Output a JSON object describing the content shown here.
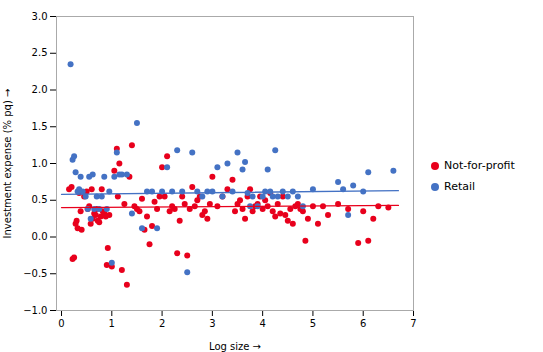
{
  "chart_data": {
    "type": "scatter",
    "xlabel": "Log size",
    "ylabel": "Investment expense (% pq)",
    "xlim": [
      -0.1,
      7.0
    ],
    "ylim": [
      -1.0,
      3.0
    ],
    "xticks": [
      0,
      1,
      2,
      3,
      4,
      5,
      6,
      7
    ],
    "yticks": [
      {
        "value": -1.0,
        "label": "−1.0"
      },
      {
        "value": -0.5,
        "label": "−0.5"
      },
      {
        "value": 0.0,
        "label": "0.0"
      },
      {
        "value": 0.5,
        "label": "0.5"
      },
      {
        "value": 1.0,
        "label": "1.0"
      },
      {
        "value": 1.5,
        "label": "1.5"
      },
      {
        "value": 2.0,
        "label": "2.0"
      },
      {
        "value": 2.5,
        "label": "2.5"
      },
      {
        "value": 3.0,
        "label": "3.0"
      }
    ],
    "grid": false,
    "legend": "right",
    "series": [
      {
        "name": "Not-for-profit",
        "color": "#e8001c",
        "x": [
          0.15,
          0.2,
          0.22,
          0.25,
          0.28,
          0.3,
          0.32,
          0.35,
          0.38,
          0.4,
          0.45,
          0.5,
          0.52,
          0.55,
          0.58,
          0.6,
          0.62,
          0.65,
          0.68,
          0.7,
          0.72,
          0.75,
          0.78,
          0.8,
          0.82,
          0.85,
          0.88,
          0.9,
          0.92,
          0.95,
          1.0,
          1.05,
          1.1,
          1.12,
          1.15,
          1.2,
          1.25,
          1.3,
          1.35,
          1.4,
          1.45,
          1.5,
          1.55,
          1.6,
          1.65,
          1.7,
          1.75,
          1.8,
          1.85,
          1.9,
          1.95,
          2.0,
          2.05,
          2.1,
          2.15,
          2.2,
          2.25,
          2.3,
          2.35,
          2.4,
          2.45,
          2.5,
          2.55,
          2.6,
          2.65,
          2.7,
          2.75,
          2.8,
          2.85,
          2.9,
          2.95,
          3.0,
          3.1,
          3.2,
          3.3,
          3.4,
          3.45,
          3.5,
          3.55,
          3.6,
          3.65,
          3.7,
          3.75,
          3.8,
          3.85,
          3.9,
          3.95,
          4.0,
          4.05,
          4.1,
          4.15,
          4.2,
          4.25,
          4.3,
          4.35,
          4.4,
          4.45,
          4.5,
          4.55,
          4.6,
          4.65,
          4.7,
          4.75,
          4.8,
          4.85,
          4.9,
          5.0,
          5.1,
          5.2,
          5.3,
          5.5,
          5.7,
          5.9,
          6.0,
          6.1,
          6.2,
          6.3,
          6.5
        ],
        "values": [
          0.65,
          0.68,
          -0.3,
          -0.28,
          0.18,
          0.22,
          0.12,
          0.6,
          0.35,
          0.1,
          0.55,
          0.62,
          0.38,
          0.42,
          0.18,
          0.65,
          0.25,
          0.32,
          0.3,
          0.38,
          0.22,
          0.2,
          0.28,
          0.65,
          0.35,
          0.32,
          0.28,
          -0.38,
          -0.15,
          0.3,
          -0.4,
          0.9,
          1.2,
          0.55,
          1.0,
          -0.45,
          0.45,
          -0.65,
          0.82,
          1.25,
          0.42,
          0.38,
          0.35,
          0.52,
          0.1,
          0.28,
          -0.1,
          0.15,
          0.48,
          0.38,
          0.55,
          0.95,
          0.55,
          1.1,
          0.35,
          0.42,
          0.38,
          -0.22,
          0.22,
          0.55,
          0.45,
          -0.25,
          0.38,
          0.68,
          0.42,
          0.5,
          0.55,
          0.3,
          0.35,
          0.25,
          0.45,
          0.82,
          0.42,
          0.55,
          0.65,
          0.78,
          0.35,
          0.45,
          0.5,
          0.38,
          0.25,
          0.55,
          0.65,
          0.35,
          0.42,
          0.45,
          0.55,
          0.38,
          0.5,
          0.42,
          0.6,
          0.35,
          0.28,
          0.45,
          0.32,
          0.55,
          0.3,
          0.22,
          0.38,
          0.18,
          0.42,
          0.45,
          0.38,
          0.35,
          -0.05,
          0.25,
          0.42,
          0.18,
          0.42,
          0.3,
          0.45,
          0.38,
          -0.08,
          0.35,
          -0.05,
          0.25,
          0.42,
          0.4
        ],
        "trend": {
          "x": [
            0.0,
            6.7
          ],
          "values": [
            0.4,
            0.43
          ]
        }
      },
      {
        "name": "Retail",
        "color": "#4472c4",
        "x": [
          0.18,
          0.22,
          0.25,
          0.28,
          0.32,
          0.35,
          0.38,
          0.42,
          0.48,
          0.52,
          0.55,
          0.58,
          0.62,
          0.65,
          0.7,
          0.75,
          0.8,
          0.85,
          0.9,
          0.95,
          1.0,
          1.05,
          1.1,
          1.15,
          1.2,
          1.3,
          1.4,
          1.5,
          1.6,
          1.7,
          1.8,
          1.9,
          2.0,
          2.1,
          2.2,
          2.3,
          2.4,
          2.5,
          2.6,
          2.7,
          2.8,
          2.9,
          3.0,
          3.1,
          3.2,
          3.3,
          3.4,
          3.5,
          3.6,
          3.65,
          3.7,
          3.75,
          3.8,
          3.9,
          4.0,
          4.05,
          4.1,
          4.15,
          4.2,
          4.25,
          4.3,
          4.4,
          4.5,
          4.6,
          4.7,
          4.8,
          5.0,
          5.5,
          5.6,
          5.7,
          5.8,
          6.0,
          6.1,
          6.6
        ],
        "values": [
          2.35,
          1.05,
          1.1,
          0.88,
          0.62,
          0.65,
          0.82,
          0.62,
          0.55,
          0.38,
          0.82,
          0.25,
          0.85,
          0.38,
          0.55,
          0.38,
          0.55,
          0.82,
          0.38,
          0.62,
          -0.35,
          0.82,
          1.15,
          0.85,
          0.85,
          0.85,
          0.32,
          1.55,
          0.12,
          0.62,
          0.62,
          0.12,
          0.62,
          0.95,
          0.62,
          1.18,
          0.62,
          -0.48,
          1.15,
          0.62,
          0.55,
          0.62,
          0.62,
          0.95,
          0.55,
          1.0,
          0.62,
          1.15,
          0.92,
          1.02,
          0.6,
          0.42,
          0.55,
          0.42,
          0.55,
          0.62,
          0.92,
          0.62,
          0.55,
          1.18,
          0.55,
          0.62,
          0.55,
          0.62,
          0.55,
          0.42,
          0.65,
          0.75,
          0.65,
          0.3,
          0.7,
          0.62,
          0.88,
          0.9
        ],
        "trend": {
          "x": [
            0.0,
            6.7
          ],
          "values": [
            0.58,
            0.63
          ]
        }
      }
    ]
  }
}
